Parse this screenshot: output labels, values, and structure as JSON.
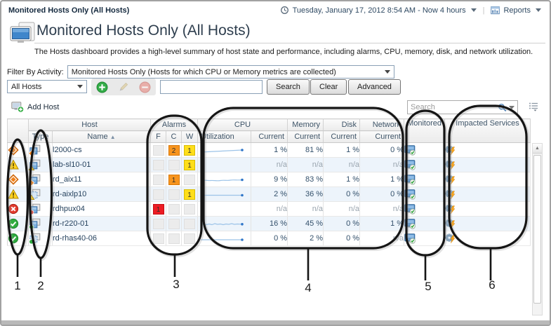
{
  "topbar": {
    "breadcrumb": "Monitored Hosts Only (All Hosts)",
    "time_range": "Tuesday, January 17, 2012 8:54 AM - Now 4 hours",
    "reports_label": "Reports"
  },
  "page": {
    "title": "Monitored Hosts Only (All Hosts)",
    "description": "The Hosts dashboard provides a high-level summary of host state and performance, including alarms, CPU, memory, disk, and network utilization."
  },
  "filter": {
    "label": "Filter By Activity:",
    "value": "Monitored Hosts Only (Hosts for which CPU or Memory metrics are collected)"
  },
  "controls": {
    "scope_value": "All Hosts",
    "search_button": "Search",
    "clear_button": "Clear",
    "advanced_button": "Advanced"
  },
  "toolbar": {
    "add_host_label": "Add Host",
    "search_placeholder": "Search"
  },
  "table": {
    "headers": {
      "host": "Host",
      "alarms": "Alarms",
      "cpu": "CPU",
      "memory": "Memory",
      "disk": "Disk",
      "network": "Network",
      "monitored": "Monitored",
      "impacted": "Impacted Services",
      "type": "Type",
      "name": "Name",
      "sort_indicator": "▲",
      "f": "F",
      "c": "C",
      "w": "W",
      "utilization": "Utilization",
      "current": "Current"
    },
    "rows": [
      {
        "severity": "critical",
        "type_base": "host",
        "type_badge": "critical",
        "name": "l2000-cs",
        "f": "",
        "c": "2",
        "w": "1",
        "sparkline": "rise",
        "cpu": "1 %",
        "memory": "81 %",
        "disk": "1 %",
        "network": "0 %"
      },
      {
        "severity": "warning",
        "type_base": "host",
        "type_badge": "warning",
        "name": "lab-sl10-01",
        "f": "",
        "c": "",
        "w": "1",
        "sparkline": "none",
        "cpu": "n/a",
        "memory": "n/a",
        "disk": "n/a",
        "network": "n/a"
      },
      {
        "severity": "critical",
        "type_base": "host",
        "type_badge": "critical",
        "name": "rd_aix11",
        "f": "",
        "c": "1",
        "w": "",
        "sparkline": "wavy",
        "cpu": "9 %",
        "memory": "83 %",
        "disk": "1 %",
        "network": "1 %"
      },
      {
        "severity": "warning",
        "type_base": "virtual",
        "type_badge": "warning",
        "name": "rd-aixlp10",
        "f": "",
        "c": "",
        "w": "1",
        "sparkline": "flat",
        "cpu": "2 %",
        "memory": "36 %",
        "disk": "0 %",
        "network": "0 %"
      },
      {
        "severity": "fatal",
        "type_base": "host",
        "type_badge": "fatal",
        "name": "rdhpux04",
        "f": "1",
        "c": "",
        "w": "",
        "sparkline": "none",
        "cpu": "n/a",
        "memory": "n/a",
        "disk": "n/a",
        "network": "n/a"
      },
      {
        "severity": "normal",
        "type_base": "host",
        "type_badge": "normal",
        "name": "rd-r220-01",
        "f": "",
        "c": "",
        "w": "",
        "sparkline": "noisy",
        "cpu": "16 %",
        "memory": "45 %",
        "disk": "0 %",
        "network": "1 %"
      },
      {
        "severity": "normal",
        "type_base": "virtual",
        "type_badge": "normal",
        "name": "rd-rhas40-06",
        "f": "",
        "c": "",
        "w": "",
        "sparkline": "flat2",
        "cpu": "0 %",
        "memory": "2 %",
        "disk": "0 %",
        "network": "n/a"
      }
    ]
  },
  "annotations": {
    "labels": [
      "1",
      "2",
      "3",
      "4",
      "5",
      "6"
    ]
  },
  "colors": {
    "alarm_fatal": "#ED1C24",
    "alarm_critical": "#F7941E",
    "alarm_warning": "#FFDE1A",
    "severity_normal": "#2EAC3F",
    "sparkline": "#9CC3E8",
    "sparkline_dot": "#2E75C8",
    "accent_blue": "#3F86CB",
    "header_text": "#3E5468",
    "row_alt": "#EDF4FB"
  }
}
